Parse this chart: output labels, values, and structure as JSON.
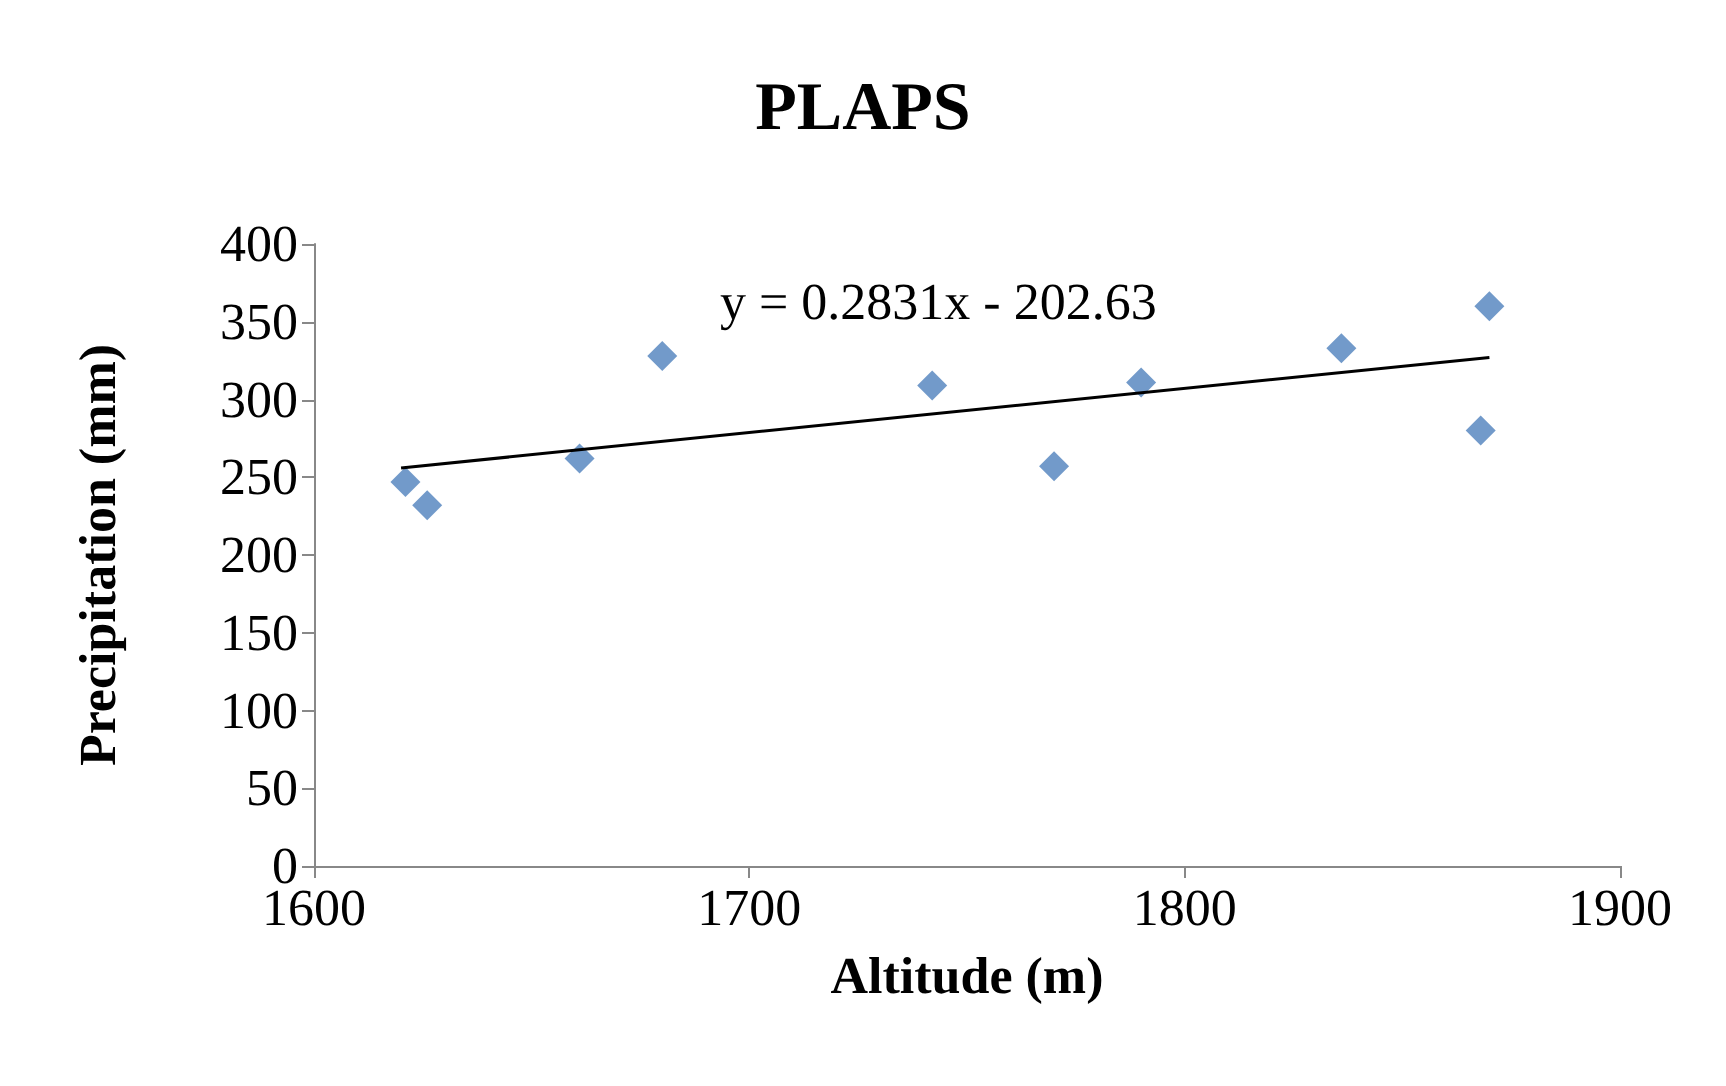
{
  "chart_data": {
    "type": "scatter",
    "title": "PLAPS",
    "xlabel": "Altitude (m)",
    "ylabel": "Precipitation (mm)",
    "xlim": [
      1600,
      1900
    ],
    "xticks": [
      1600,
      1700,
      1800,
      1900
    ],
    "ylim": [
      0,
      400
    ],
    "yticks": [
      0,
      50,
      100,
      150,
      200,
      250,
      300,
      350,
      400
    ],
    "grid": false,
    "marker": "diamond",
    "annotations": [
      "y = 0.2831x - 202.63"
    ],
    "series": [
      {
        "type": "scatter",
        "color": "#4f81bd",
        "x": [
          1621,
          1626,
          1661,
          1680,
          1742,
          1770,
          1790,
          1836,
          1868,
          1870
        ],
        "values": [
          247,
          232,
          262,
          328,
          309,
          257,
          311,
          333,
          280,
          360
        ]
      },
      {
        "type": "line",
        "color": "#000000",
        "marker": "none",
        "x": [
          1620,
          1870
        ],
        "values": [
          256,
          327
        ]
      }
    ]
  }
}
